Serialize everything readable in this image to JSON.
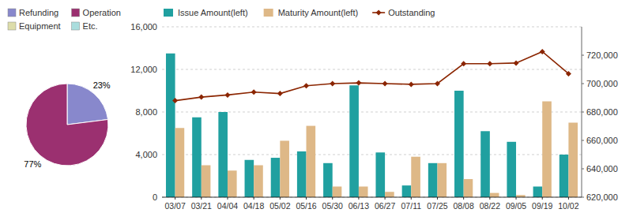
{
  "chart_data": [
    {
      "type": "bar",
      "categories": [
        "03/07",
        "03/21",
        "04/04",
        "04/18",
        "05/02",
        "05/16",
        "05/30",
        "06/13",
        "06/27",
        "07/11",
        "07/25",
        "08/08",
        "08/22",
        "09/05",
        "09/19",
        "10/02"
      ],
      "series": [
        {
          "name": "Issue Amount(left)",
          "color": "#20a0a0",
          "values": [
            13500,
            7500,
            8000,
            3500,
            3700,
            4300,
            3200,
            10500,
            4200,
            1100,
            3200,
            10000,
            6200,
            5200,
            1000,
            4000
          ]
        },
        {
          "name": "Maturity Amount(left)",
          "color": "#deb887",
          "values": [
            6500,
            3000,
            2500,
            3000,
            5300,
            6700,
            1000,
            1000,
            500,
            3800,
            3200,
            1700,
            400,
            200,
            9000,
            7000
          ]
        },
        {
          "name": "Outstanding",
          "type": "line",
          "axis": "y2",
          "color": "#8B2500",
          "marker": "diamond",
          "values": [
            688000,
            690500,
            692000,
            694000,
            693000,
            698500,
            700000,
            700500,
            700000,
            699500,
            700000,
            714000,
            714000,
            714500,
            722500,
            707000
          ]
        }
      ],
      "ylim": [
        0,
        16000
      ],
      "yticks": [
        0,
        {
          "value": 4000,
          "label": "4,000"
        },
        {
          "value": 8000,
          "label": "8,000"
        },
        {
          "value": 12000,
          "label": "12,000"
        },
        {
          "value": 16000,
          "label": "16,000"
        }
      ],
      "y2lim": [
        620000,
        740000
      ],
      "y2ticks": [
        {
          "value": 620000,
          "label": "620,000"
        },
        {
          "value": 640000,
          "label": "640,000"
        },
        {
          "value": 660000,
          "label": "660,000"
        },
        {
          "value": 680000,
          "label": "680,000"
        },
        {
          "value": 700000,
          "label": "700,000"
        },
        {
          "value": 720000,
          "label": "720,000"
        }
      ],
      "grid": true,
      "legend": "top"
    },
    {
      "type": "pie",
      "categories": [
        "Refunding",
        "Operation",
        "Equipment",
        "Etc."
      ],
      "colors": [
        "#8888CC",
        "#9B3070",
        "#ddddaa",
        "#aadddd"
      ],
      "values": [
        23,
        77,
        null,
        null
      ],
      "value_labels": [
        "23%",
        "77%",
        null,
        null
      ],
      "data_labels": true,
      "legend": "top"
    }
  ]
}
